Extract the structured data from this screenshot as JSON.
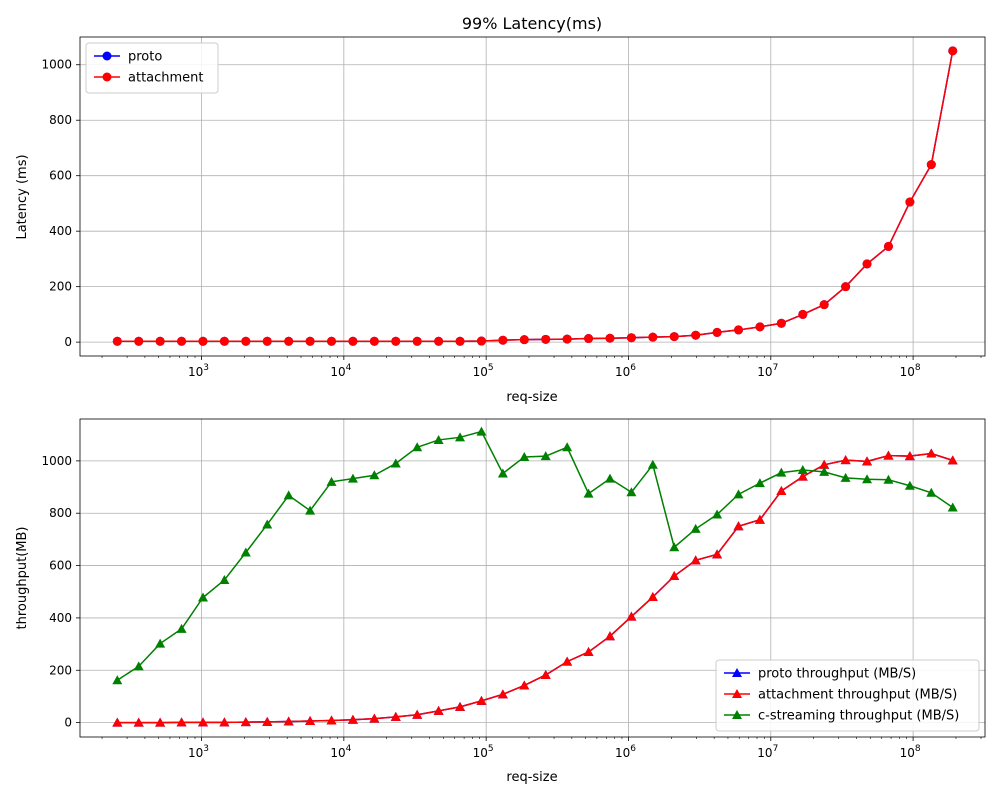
{
  "chart_data": [
    {
      "type": "line",
      "title": "99% Latency(ms)",
      "xlabel": "req-size",
      "ylabel": "Latency (ms)",
      "xscale": "log",
      "xlim": [
        140,
        320000000
      ],
      "ylim": [
        -50,
        1100
      ],
      "grid": true,
      "legend_position": "top-left",
      "x_tick_labels": [
        {
          "value": 1000,
          "label": "10^3"
        },
        {
          "value": 10000,
          "label": "10^4"
        },
        {
          "value": 100000,
          "label": "10^5"
        },
        {
          "value": 1000000,
          "label": "10^6"
        },
        {
          "value": 10000000,
          "label": "10^7"
        },
        {
          "value": 100000000,
          "label": "10^8"
        }
      ],
      "y_ticks": [
        0,
        200,
        400,
        600,
        800,
        1000
      ],
      "x": [
        256,
        362,
        512,
        724,
        1024,
        1448,
        2048,
        2896,
        4096,
        5793,
        8192,
        11585,
        16384,
        23170,
        32768,
        46341,
        65536,
        92682,
        131072,
        185364,
        262144,
        370728,
        524288,
        741455,
        1048576,
        1482910,
        2097152,
        2965821,
        4194304,
        5931642,
        8388608,
        11863283,
        16777216,
        23726566,
        33554432,
        47453133,
        67108864,
        94906265,
        134217728,
        189812531
      ],
      "series": [
        {
          "name": "proto",
          "color": "#0000ff",
          "marker": "circle",
          "values": [
            3,
            3,
            3,
            3,
            3,
            3,
            3,
            3,
            3,
            3,
            3,
            3,
            3,
            3,
            3,
            3,
            3,
            4,
            7,
            9,
            10,
            11,
            13,
            14,
            16,
            18,
            20,
            25,
            35,
            44,
            55,
            68,
            100,
            135,
            200,
            282,
            345,
            505,
            640,
            1050
          ]
        },
        {
          "name": "attachment",
          "color": "#ff0000",
          "marker": "circle",
          "values": [
            3,
            3,
            3,
            3,
            3,
            3,
            3,
            3,
            3,
            3,
            3,
            3,
            3,
            3,
            3,
            3,
            3,
            4,
            7,
            9,
            10,
            11,
            13,
            14,
            16,
            18,
            20,
            25,
            35,
            44,
            55,
            68,
            100,
            135,
            200,
            282,
            345,
            505,
            640,
            1050
          ]
        }
      ]
    },
    {
      "type": "line",
      "title": "",
      "xlabel": "req-size",
      "ylabel": "throughput(MB)",
      "xscale": "log",
      "xlim": [
        140,
        320000000
      ],
      "ylim": [
        -55,
        1160
      ],
      "grid": true,
      "legend_position": "bottom-right",
      "x_tick_labels": [
        {
          "value": 1000,
          "label": "10^3"
        },
        {
          "value": 10000,
          "label": "10^4"
        },
        {
          "value": 100000,
          "label": "10^5"
        },
        {
          "value": 1000000,
          "label": "10^6"
        },
        {
          "value": 10000000,
          "label": "10^7"
        },
        {
          "value": 100000000,
          "label": "10^8"
        }
      ],
      "y_ticks": [
        0,
        200,
        400,
        600,
        800,
        1000
      ],
      "x": [
        256,
        362,
        512,
        724,
        1024,
        1448,
        2048,
        2896,
        4096,
        5793,
        8192,
        11585,
        16384,
        23170,
        32768,
        46341,
        65536,
        92682,
        131072,
        185364,
        262144,
        370728,
        524288,
        741455,
        1048576,
        1482910,
        2097152,
        2965821,
        4194304,
        5931642,
        8388608,
        11863283,
        16777216,
        23726566,
        33554432,
        47453133,
        67108864,
        94906265,
        134217728,
        189812531
      ],
      "series": [
        {
          "name": "proto throughput (MB/S)",
          "color": "#0000ff",
          "marker": "triangle",
          "values": [
            0,
            0,
            0,
            1,
            1,
            1,
            2,
            3,
            4,
            6,
            8,
            11,
            15,
            22,
            30,
            45,
            60,
            83,
            108,
            142,
            182,
            233,
            270,
            330,
            405,
            480,
            560,
            620,
            643,
            750,
            775,
            885,
            940,
            985,
            1003,
            998,
            1020,
            1018,
            1028,
            1002
          ]
        },
        {
          "name": "attachment throughput (MB/S)",
          "color": "#ff0000",
          "marker": "triangle",
          "values": [
            0,
            0,
            0,
            1,
            1,
            1,
            2,
            3,
            4,
            6,
            8,
            11,
            15,
            22,
            30,
            45,
            60,
            83,
            108,
            142,
            182,
            233,
            270,
            330,
            405,
            480,
            560,
            620,
            643,
            750,
            775,
            885,
            940,
            985,
            1003,
            998,
            1020,
            1018,
            1028,
            1002
          ]
        },
        {
          "name": "c-streaming throughput (MB/S)",
          "color": "#008000",
          "marker": "triangle",
          "values": [
            162,
            215,
            302,
            358,
            478,
            545,
            650,
            757,
            868,
            810,
            920,
            932,
            945,
            990,
            1052,
            1080,
            1090,
            1112,
            952,
            1015,
            1018,
            1052,
            875,
            932,
            880,
            985,
            670,
            740,
            795,
            872,
            915,
            955,
            965,
            958,
            935,
            930,
            928,
            905,
            878,
            822
          ]
        }
      ]
    }
  ]
}
